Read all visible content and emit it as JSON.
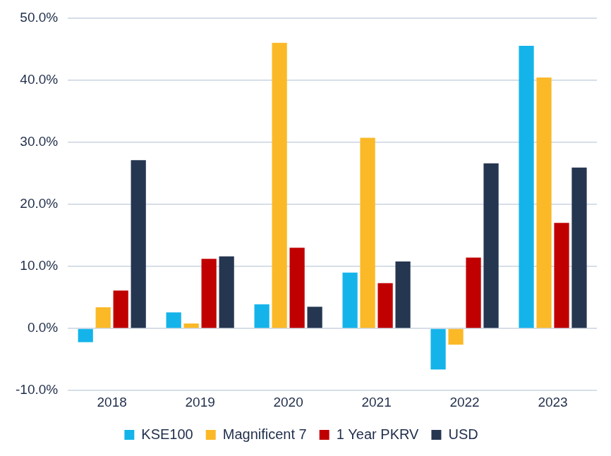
{
  "chart_data": {
    "type": "bar",
    "categories": [
      "2018",
      "2019",
      "2020",
      "2021",
      "2022",
      "2023"
    ],
    "series": [
      {
        "name": "KSE100",
        "color": "#14b4ea",
        "values": [
          -2.2,
          2.6,
          3.9,
          9.0,
          -6.6,
          45.5
        ]
      },
      {
        "name": "Magnificent 7",
        "color": "#fbb927",
        "values": [
          3.4,
          0.8,
          46.0,
          30.7,
          -2.6,
          40.4
        ]
      },
      {
        "name": "1 Year PKRV",
        "color": "#c00000",
        "values": [
          6.1,
          11.2,
          13.0,
          7.3,
          11.4,
          17.0
        ]
      },
      {
        "name": "USD",
        "color": "#253650",
        "values": [
          27.1,
          11.6,
          3.5,
          10.8,
          26.6,
          25.9
        ]
      }
    ],
    "ylim": [
      -10,
      50
    ],
    "yticks": [
      {
        "value": -10,
        "label": "-10.0%"
      },
      {
        "value": 0,
        "label": "0.0%"
      },
      {
        "value": 10,
        "label": "10.0%"
      },
      {
        "value": 20,
        "label": "20.0%"
      },
      {
        "value": 30,
        "label": "30.0%"
      },
      {
        "value": 40,
        "label": "40.0%"
      },
      {
        "value": 50,
        "label": "50.0%"
      }
    ],
    "grid": true,
    "legend": "bottom"
  }
}
